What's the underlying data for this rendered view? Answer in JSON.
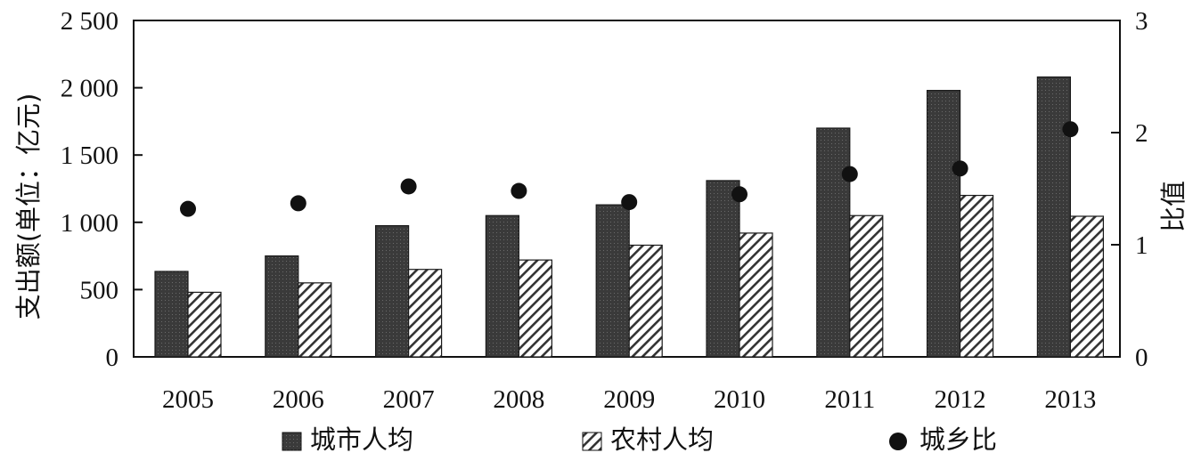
{
  "chart_data": {
    "type": "bar",
    "categories": [
      "2005",
      "2006",
      "2007",
      "2008",
      "2009",
      "2010",
      "2011",
      "2012",
      "2013"
    ],
    "series": [
      {
        "name": "城市人均",
        "axis": "left",
        "kind": "bar",
        "pattern": "dark-dotted",
        "values": [
          635,
          750,
          975,
          1050,
          1130,
          1310,
          1700,
          1980,
          2080
        ]
      },
      {
        "name": "农村人均",
        "axis": "left",
        "kind": "bar",
        "pattern": "hatched",
        "values": [
          480,
          550,
          650,
          720,
          830,
          920,
          1050,
          1200,
          1045
        ]
      },
      {
        "name": "城乡比",
        "axis": "right",
        "kind": "point",
        "marker": "circle",
        "values": [
          1.32,
          1.37,
          1.52,
          1.48,
          1.38,
          1.45,
          1.63,
          1.68,
          2.03
        ]
      }
    ],
    "ylabel": "支出额(单位：亿元)",
    "y2label": "比值",
    "ylim": [
      0,
      2500
    ],
    "y2lim": [
      0,
      3
    ],
    "yticks": [
      "0",
      "500",
      "1 000",
      "1 500",
      "2 000",
      "2 500"
    ],
    "y2ticks": [
      "0",
      "1",
      "2",
      "3"
    ],
    "grid": false,
    "legend_position": "bottom",
    "colors": {
      "urban_bar": "#3a3a3a",
      "rural_hatch": "#333333",
      "ratio_point": "#111111"
    }
  }
}
